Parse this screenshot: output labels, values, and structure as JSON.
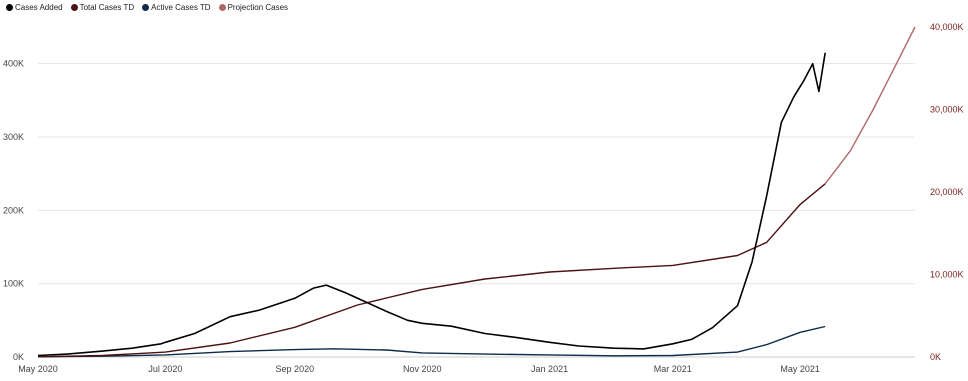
{
  "chart_data": {
    "type": "line",
    "title": "",
    "xlabel": "",
    "ylabel": "",
    "legend_position": "top-left",
    "grid": true,
    "x_ticks": [
      "May 2020",
      "Jul 2020",
      "Sep 2020",
      "Nov 2020",
      "Jan 2021",
      "Mar 2021",
      "May 2021"
    ],
    "x_tick_dates": [
      "2020-05-01",
      "2020-07-01",
      "2020-09-01",
      "2020-11-01",
      "2021-01-01",
      "2021-03-01",
      "2021-05-01"
    ],
    "x_range": [
      "2020-05-01",
      "2021-06-25"
    ],
    "y_left": {
      "ticks": [
        "0K",
        "100K",
        "200K",
        "300K",
        "400K"
      ],
      "tick_values": [
        0,
        100000,
        200000,
        300000,
        400000
      ],
      "range": [
        0,
        450000
      ]
    },
    "y_right": {
      "ticks": [
        "0K",
        "10,000K",
        "20,000K",
        "30,000K",
        "40,000K"
      ],
      "tick_values": [
        0,
        10000000,
        20000000,
        30000000,
        40000000
      ],
      "range": [
        0,
        40000000
      ]
    },
    "series": [
      {
        "name": "Cases Added",
        "color": "#000000",
        "axis": "left",
        "points": [
          [
            "2020-05-01",
            2000
          ],
          [
            "2020-05-15",
            4000
          ],
          [
            "2020-06-01",
            8000
          ],
          [
            "2020-06-15",
            12000
          ],
          [
            "2020-06-29",
            18000
          ],
          [
            "2020-07-01",
            20000
          ],
          [
            "2020-07-15",
            32000
          ],
          [
            "2020-08-01",
            55000
          ],
          [
            "2020-08-15",
            64000
          ],
          [
            "2020-09-01",
            80000
          ],
          [
            "2020-09-10",
            94000
          ],
          [
            "2020-09-16",
            98000
          ],
          [
            "2020-09-25",
            88000
          ],
          [
            "2020-10-05",
            75000
          ],
          [
            "2020-10-15",
            62000
          ],
          [
            "2020-10-25",
            50000
          ],
          [
            "2020-11-01",
            46000
          ],
          [
            "2020-11-15",
            42000
          ],
          [
            "2020-12-01",
            32000
          ],
          [
            "2020-12-15",
            27000
          ],
          [
            "2021-01-01",
            20000
          ],
          [
            "2021-01-15",
            15000
          ],
          [
            "2021-02-01",
            12000
          ],
          [
            "2021-02-15",
            11000
          ],
          [
            "2021-03-01",
            18000
          ],
          [
            "2021-03-10",
            24000
          ],
          [
            "2021-03-20",
            40000
          ],
          [
            "2021-04-01",
            70000
          ],
          [
            "2021-04-08",
            130000
          ],
          [
            "2021-04-15",
            220000
          ],
          [
            "2021-04-22",
            320000
          ],
          [
            "2021-04-28",
            355000
          ],
          [
            "2021-05-03",
            378000
          ],
          [
            "2021-05-07",
            400000
          ],
          [
            "2021-05-10",
            362000
          ],
          [
            "2021-05-13",
            415000
          ]
        ]
      },
      {
        "name": "Total Cases TD",
        "color": "#4a1212",
        "axis": "right",
        "points": [
          [
            "2020-05-01",
            30000
          ],
          [
            "2020-06-01",
            180000
          ],
          [
            "2020-07-01",
            600000
          ],
          [
            "2020-08-01",
            1700000
          ],
          [
            "2020-09-01",
            3600000
          ],
          [
            "2020-10-01",
            6300000
          ],
          [
            "2020-11-01",
            8200000
          ],
          [
            "2020-12-01",
            9450000
          ],
          [
            "2021-01-01",
            10300000
          ],
          [
            "2021-02-01",
            10750000
          ],
          [
            "2021-03-01",
            11100000
          ],
          [
            "2021-04-01",
            12300000
          ],
          [
            "2021-04-15",
            13900000
          ],
          [
            "2021-05-01",
            18500000
          ],
          [
            "2021-05-13",
            21000000
          ]
        ]
      },
      {
        "name": "Active Cases TD",
        "color": "#0f2a4a",
        "axis": "right",
        "points": [
          [
            "2020-05-01",
            20000
          ],
          [
            "2020-06-01",
            100000
          ],
          [
            "2020-07-01",
            250000
          ],
          [
            "2020-08-01",
            650000
          ],
          [
            "2020-09-01",
            900000
          ],
          [
            "2020-09-20",
            1000000
          ],
          [
            "2020-10-15",
            850000
          ],
          [
            "2020-11-01",
            500000
          ],
          [
            "2020-12-01",
            350000
          ],
          [
            "2021-01-01",
            250000
          ],
          [
            "2021-02-01",
            150000
          ],
          [
            "2021-03-01",
            180000
          ],
          [
            "2021-04-01",
            600000
          ],
          [
            "2021-04-15",
            1500000
          ],
          [
            "2021-05-01",
            3000000
          ],
          [
            "2021-05-13",
            3700000
          ]
        ]
      },
      {
        "name": "Projection Cases",
        "color": "#b06868",
        "axis": "right",
        "points": [
          [
            "2021-05-13",
            21000000
          ],
          [
            "2021-05-25",
            25000000
          ],
          [
            "2021-06-05",
            30000000
          ],
          [
            "2021-06-15",
            35000000
          ],
          [
            "2021-06-25",
            40000000
          ]
        ]
      }
    ]
  }
}
